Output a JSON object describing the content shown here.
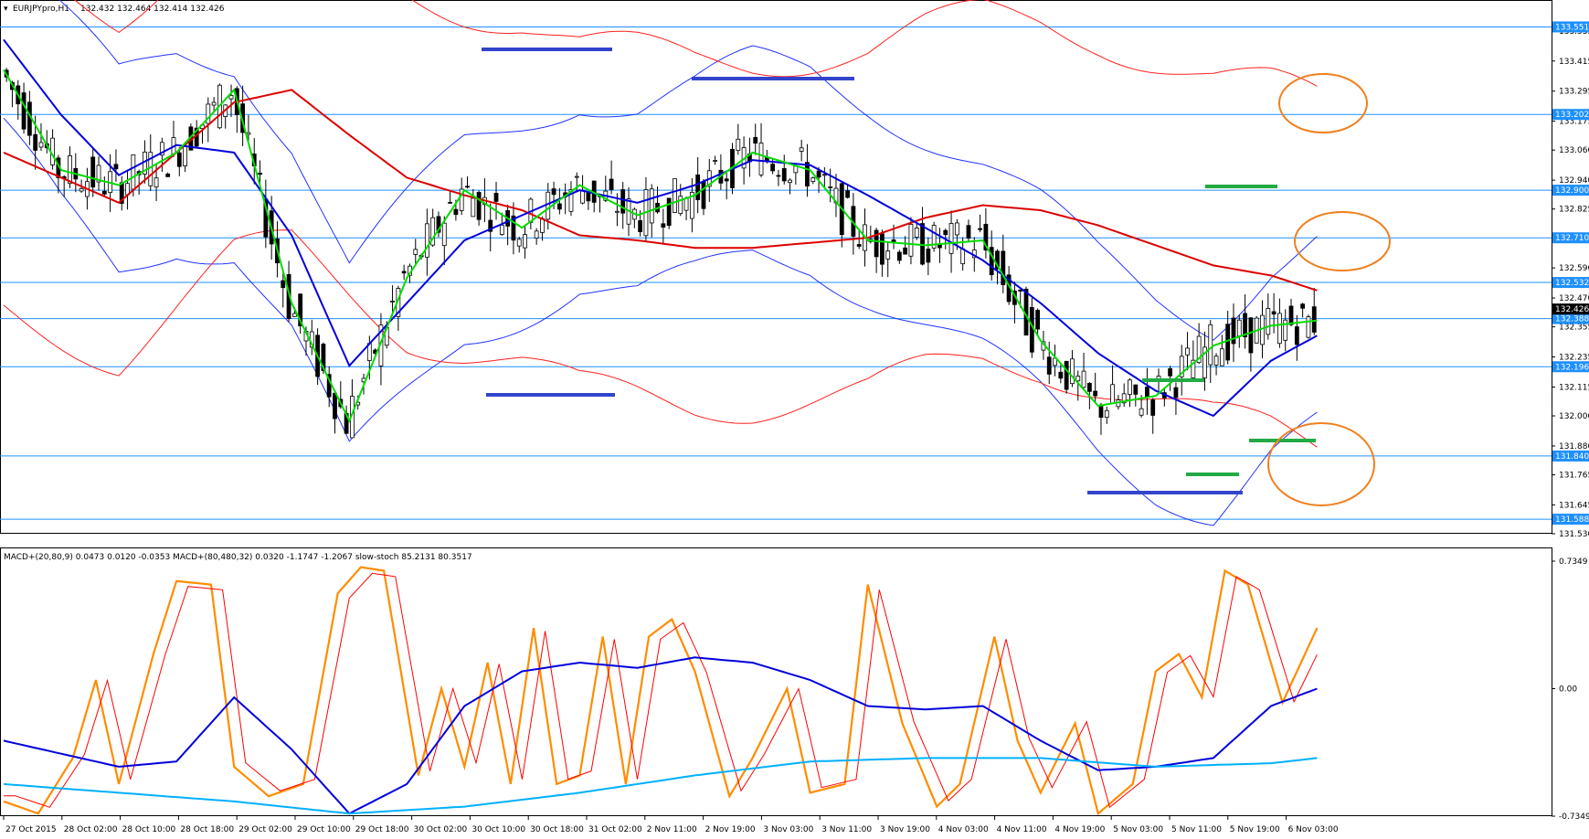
{
  "price_panel": {
    "symbol": "EURJPYpro,H1",
    "ohlc": "132.432 132.464 132.414 132.426",
    "current_price": "132.426",
    "axis_ticks": [
      "133.535",
      "133.415",
      "133.295",
      "133.175",
      "133.060",
      "132.940",
      "132.825",
      "132.705",
      "132.590",
      "132.470",
      "132.355",
      "132.235",
      "132.115",
      "132.000",
      "131.880",
      "131.765",
      "131.645",
      "131.530"
    ],
    "levels": [
      {
        "value": 133.551,
        "label": "133.551"
      },
      {
        "value": 133.202,
        "label": "133.202"
      },
      {
        "value": 132.9,
        "label": "132.900"
      },
      {
        "value": 132.71,
        "label": "132.710"
      },
      {
        "value": 132.532,
        "label": "132.532"
      },
      {
        "value": 132.388,
        "label": "132.388"
      },
      {
        "value": 132.196,
        "label": "132.196"
      },
      {
        "value": 131.84,
        "label": "131.840"
      },
      {
        "value": 131.588,
        "label": "131.588"
      }
    ],
    "colors": {
      "level": "#1e90ff",
      "tag": "#1e90ff",
      "blue_line": "#0000dd",
      "red_line": "#dd0000",
      "green_line": "#00dd00",
      "thin_blue": "#2233ff",
      "thin_red": "#ff2020",
      "circle": "#f08020"
    }
  },
  "indicator_panel": {
    "header": "MACD+(20,80,9) 0.0473 0.0120 -0.0353   MACD+(80,480,32) 0.0320 -1.1747 -1.2067   slow-stoch 85.2131 80.3517",
    "axis_ticks": [
      "0.7349",
      "0.00",
      "-0.7349"
    ],
    "colors": {
      "orange": "#ff8c00",
      "red": "#ff0000",
      "blue": "#0000dd",
      "cyan": "#00b0ff",
      "magenta": "#ff00cc"
    }
  },
  "time_axis": [
    "27 Oct 2015",
    "28 Oct 02:00",
    "28 Oct 10:00",
    "28 Oct 18:00",
    "29 Oct 02:00",
    "29 Oct 10:00",
    "29 Oct 18:00",
    "30 Oct 02:00",
    "30 Oct 10:00",
    "30 Oct 18:00",
    "31 Oct 02:00",
    "2 Nov 11:00",
    "2 Nov 19:00",
    "3 Nov 03:00",
    "3 Nov 11:00",
    "3 Nov 19:00",
    "4 Nov 03:00",
    "4 Nov 11:00",
    "4 Nov 19:00",
    "5 Nov 03:00",
    "5 Nov 11:00",
    "5 Nov 19:00",
    "6 Nov 03:00"
  ],
  "chart_data": [
    {
      "type": "candlestick",
      "title": "EURJPYpro,H1",
      "ylim": [
        131.53,
        133.6
      ],
      "x_range": [
        "27 Oct 2015",
        "6 Nov 03:00"
      ],
      "grid": false,
      "horizontal_levels": [
        133.551,
        133.202,
        132.9,
        132.71,
        132.532,
        132.388,
        132.196,
        131.84,
        131.588
      ],
      "series": [
        {
          "color": "#dd0000",
          "x": [
            0,
            10,
            20,
            30,
            40,
            50,
            60,
            70,
            80,
            90,
            100,
            110,
            120,
            130,
            140,
            150,
            160,
            170,
            180,
            190,
            200,
            210,
            220,
            228
          ],
          "values": [
            133.05,
            132.95,
            132.85,
            133.05,
            133.25,
            133.3,
            133.12,
            132.95,
            132.88,
            132.82,
            132.72,
            132.7,
            132.67,
            132.67,
            132.69,
            132.71,
            132.79,
            132.84,
            132.82,
            132.76,
            132.68,
            132.6,
            132.56,
            132.5
          ]
        },
        {
          "color": "#0000dd",
          "x": [
            0,
            10,
            20,
            30,
            40,
            50,
            60,
            70,
            80,
            90,
            100,
            110,
            120,
            130,
            140,
            150,
            160,
            170,
            180,
            190,
            200,
            210,
            220,
            228
          ],
          "values": [
            133.5,
            133.2,
            132.96,
            133.08,
            133.05,
            132.72,
            132.2,
            132.45,
            132.7,
            132.8,
            132.9,
            132.85,
            132.92,
            133.02,
            133.0,
            132.88,
            132.75,
            132.62,
            132.45,
            132.25,
            132.1,
            132.0,
            132.22,
            132.32
          ]
        },
        {
          "color": "#00dd00",
          "x": [
            0,
            10,
            20,
            30,
            40,
            50,
            60,
            70,
            80,
            90,
            100,
            110,
            120,
            130,
            140,
            150,
            160,
            170,
            180,
            190,
            200,
            210,
            220,
            228
          ],
          "values": [
            133.38,
            132.98,
            132.92,
            133.05,
            133.3,
            132.45,
            131.98,
            132.55,
            132.9,
            132.75,
            132.92,
            132.8,
            132.88,
            133.05,
            132.98,
            132.7,
            132.68,
            132.7,
            132.3,
            132.04,
            132.08,
            132.28,
            132.36,
            132.38
          ]
        }
      ]
    },
    {
      "type": "line",
      "title": "",
      "ylim": [
        -0.7349,
        0.7349
      ],
      "series": [
        {
          "color": "#ff8c00",
          "x": [
            0,
            6,
            12,
            16,
            20,
            26,
            30,
            36,
            40,
            46,
            52,
            58,
            62,
            66,
            72,
            76,
            80,
            84,
            88,
            92,
            96,
            100,
            104,
            108,
            112,
            116,
            120,
            126,
            130,
            136,
            140,
            146,
            150,
            156,
            162,
            166,
            172,
            176,
            180,
            186,
            190,
            196,
            200,
            204,
            208,
            212,
            216,
            222,
            228
          ],
          "values": [
            -0.65,
            -0.72,
            -0.4,
            0.05,
            -0.55,
            0.2,
            0.62,
            0.6,
            -0.45,
            -0.62,
            -0.55,
            0.55,
            0.7,
            0.68,
            -0.5,
            0.0,
            -0.45,
            0.15,
            -0.55,
            0.35,
            -0.55,
            -0.5,
            0.3,
            -0.55,
            0.3,
            0.4,
            0.1,
            -0.62,
            -0.4,
            0.0,
            -0.6,
            -0.55,
            0.6,
            -0.2,
            -0.68,
            -0.55,
            0.3,
            -0.3,
            -0.6,
            -0.2,
            -0.72,
            -0.55,
            0.1,
            0.2,
            -0.05,
            0.68,
            0.6,
            -0.08,
            0.35
          ]
        },
        {
          "color": "#0000dd",
          "x": [
            0,
            20,
            30,
            40,
            50,
            60,
            70,
            80,
            90,
            100,
            110,
            120,
            130,
            140,
            150,
            160,
            170,
            180,
            190,
            200,
            210,
            220,
            228
          ],
          "values": [
            -0.3,
            -0.45,
            -0.42,
            -0.05,
            -0.35,
            -0.72,
            -0.55,
            -0.1,
            0.1,
            0.15,
            0.12,
            0.18,
            0.15,
            0.05,
            -0.1,
            -0.12,
            -0.1,
            -0.3,
            -0.47,
            -0.45,
            -0.4,
            -0.1,
            0.0
          ]
        },
        {
          "color": "#00b0ff",
          "x": [
            0,
            20,
            40,
            60,
            80,
            100,
            120,
            140,
            160,
            180,
            200,
            220,
            228
          ],
          "values": [
            -0.55,
            -0.6,
            -0.65,
            -0.72,
            -0.68,
            -0.6,
            -0.5,
            -0.42,
            -0.4,
            -0.4,
            -0.45,
            -0.43,
            -0.4
          ]
        }
      ]
    }
  ]
}
